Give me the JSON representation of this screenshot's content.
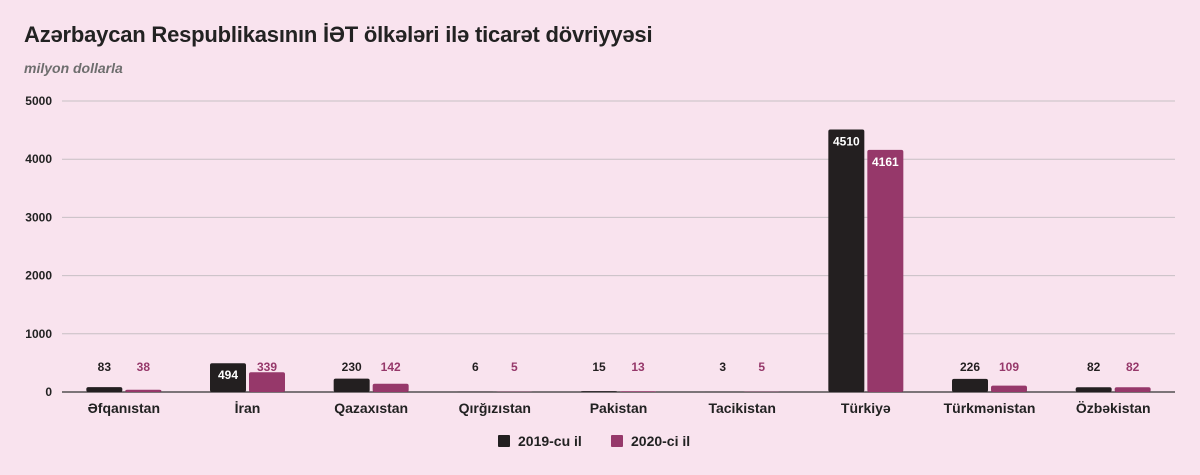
{
  "title": "Azərbaycan Respublikasının İƏT ölkələri ilə ticarət dövriyyəsi",
  "subtitle": "milyon dollarla",
  "colors": {
    "background": "#f9e3ee",
    "series_2019": "#231f20",
    "series_2020": "#96386a",
    "grid": "#c8c0c4",
    "axis": "#333333"
  },
  "chart_data": {
    "type": "bar",
    "title": "Azərbaycan Respublikasının İƏT ölkələri ilə ticarət dövriyyəsi",
    "subtitle": "milyon dollarla",
    "xlabel": "",
    "ylabel": "",
    "ylim": [
      0,
      5000
    ],
    "yticks": [
      0,
      1000,
      2000,
      3000,
      4000,
      5000
    ],
    "grid": true,
    "legend_position": "bottom",
    "categories": [
      "Əfqanıstan",
      "İran",
      "Qazaxıstan",
      "Qırğızıstan",
      "Pakistan",
      "Tacikistan",
      "Türkiyə",
      "Türkmənistan",
      "Özbəkistan"
    ],
    "series": [
      {
        "name": "2019-cu il",
        "color": "#231f20",
        "values": [
          83,
          494,
          230,
          6,
          15,
          3,
          4510,
          226,
          82
        ]
      },
      {
        "name": "2020-ci il",
        "color": "#96386a",
        "values": [
          38,
          339,
          142,
          5,
          13,
          5,
          4161,
          109,
          82
        ]
      }
    ]
  }
}
